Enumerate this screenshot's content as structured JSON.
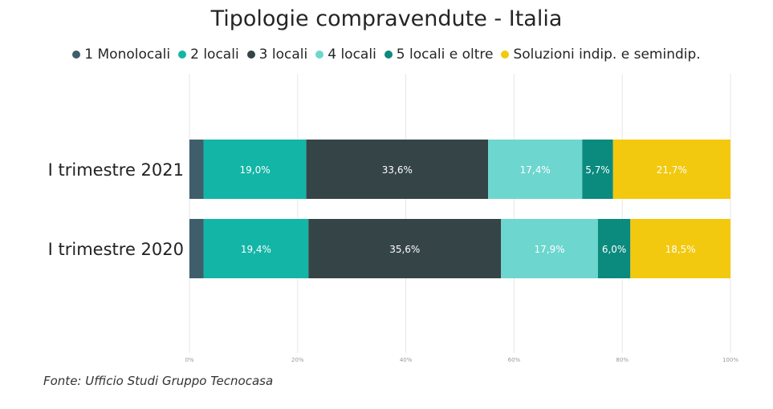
{
  "chart_data": {
    "type": "bar",
    "orientation": "horizontal",
    "stacked": true,
    "normalized": true,
    "title": "Tipologie compravendute - Italia",
    "categories": [
      "I trimestre 2021",
      "I trimestre 2020"
    ],
    "series": [
      {
        "name": "1 Monolocali",
        "color": "#3f5e6b",
        "values": [
          2.6,
          2.6
        ],
        "labels": [
          "",
          ""
        ]
      },
      {
        "name": "2 locali",
        "color": "#13b5a6",
        "values": [
          19.0,
          19.4
        ],
        "labels": [
          "19,0%",
          "19,4%"
        ]
      },
      {
        "name": "3 locali",
        "color": "#354447",
        "values": [
          33.6,
          35.6
        ],
        "labels": [
          "33,6%",
          "35,6%"
        ]
      },
      {
        "name": "4 locali",
        "color": "#6dd6cf",
        "values": [
          17.4,
          17.9
        ],
        "labels": [
          "17,4%",
          "17,9%"
        ]
      },
      {
        "name": "5 locali e oltre",
        "color": "#0b8a7e",
        "values": [
          5.7,
          6.0
        ],
        "labels": [
          "5,7%",
          "6,0%"
        ]
      },
      {
        "name": "Soluzioni indip. e semindip.",
        "color": "#f2c90f",
        "values": [
          21.7,
          18.5
        ],
        "labels": [
          "21,7%",
          "18,5%"
        ]
      }
    ],
    "xlim": [
      0,
      100
    ],
    "x_ticks": [
      "0%",
      "20%",
      "40%",
      "60%",
      "80%",
      "100%"
    ],
    "grid": true,
    "legend_position": "top"
  },
  "source": "Fonte: Ufficio Studi Gruppo Tecnocasa"
}
